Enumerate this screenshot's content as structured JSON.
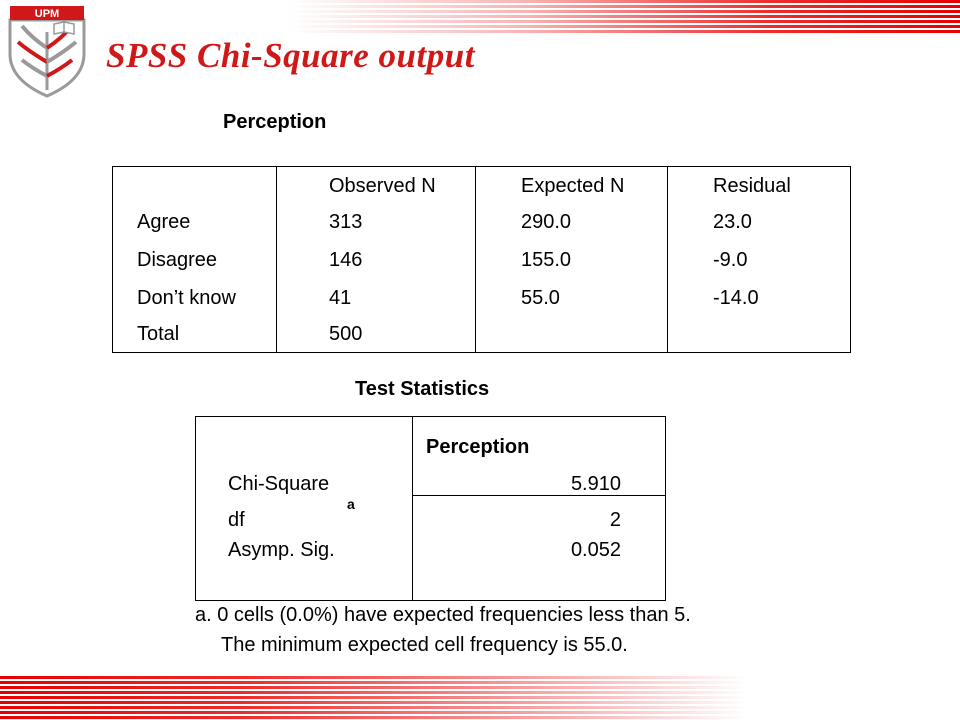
{
  "header": {
    "title": "SPSS Chi-Square output",
    "logo_text": "UPM"
  },
  "colors": {
    "brand_red": "#d01818",
    "band_red": "#e50000"
  },
  "frequency_table": {
    "caption": "Perception",
    "columns": [
      "",
      "Observed N",
      "Expected N",
      "Residual"
    ],
    "rows": [
      [
        "Agree",
        "313",
        "290.0",
        "23.0"
      ],
      [
        "Disagree",
        "146",
        "155.0",
        "-9.0"
      ],
      [
        "Don’t know",
        "41",
        "55.0",
        "-14.0"
      ],
      [
        "Total",
        "500",
        "",
        ""
      ]
    ]
  },
  "test_statistics": {
    "caption": "Test Statistics",
    "column": "Perception",
    "rows": [
      {
        "label": "Chi-Square",
        "value": "5.910"
      },
      {
        "label": "df",
        "value": "2"
      },
      {
        "label": "Asymp. Sig.",
        "value": "0.052"
      }
    ],
    "footnote_marker": "a",
    "footnote_line1": "a. 0 cells (0.0%) have expected frequencies less than 5.",
    "footnote_line2": "The minimum expected cell frequency is 55.0."
  }
}
